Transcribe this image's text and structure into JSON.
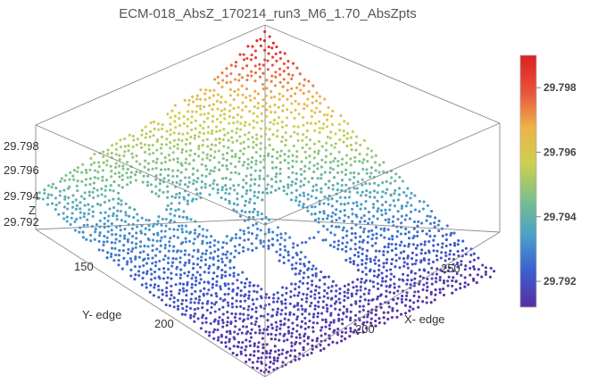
{
  "chart_data": {
    "type": "scatter",
    "title": "ECM-018_AbsZ_170214_run3_M6_1.70_AbsZpts",
    "xlabel": "X- edge",
    "ylabel": "Y- edge",
    "zlabel": "Z",
    "x_ticks": [
      "200",
      "250"
    ],
    "y_ticks": [
      "150",
      "200"
    ],
    "z_ticks": [
      "29.792",
      "29.794",
      "29.796",
      "29.798"
    ],
    "colorbar_ticks": [
      "29.792",
      "29.794",
      "29.796",
      "29.798"
    ],
    "colorbar_range": [
      29.7912,
      29.799
    ],
    "z_range": [
      29.791,
      29.799
    ],
    "colormap": [
      "#5a2da0",
      "#3b5fd0",
      "#4aa0c8",
      "#7cc08a",
      "#cdd04e",
      "#eeb24a",
      "#e8523a",
      "#dd2020"
    ],
    "surface_profile": [
      {
        "x": 0.0,
        "z": 29.7992
      },
      {
        "x": 0.25,
        "z": 29.7968
      },
      {
        "x": 0.55,
        "z": 29.7955
      },
      {
        "x": 0.75,
        "z": 29.795
      },
      {
        "x": 1.0,
        "z": 29.794
      }
    ],
    "left_edge_profile": [
      {
        "y": 0.0,
        "z": 29.7962
      },
      {
        "y": 0.25,
        "z": 29.7945
      },
      {
        "y": 0.5,
        "z": 29.7932
      },
      {
        "y": 0.75,
        "z": 29.7921
      },
      {
        "y": 1.0,
        "z": 29.7913
      }
    ]
  }
}
